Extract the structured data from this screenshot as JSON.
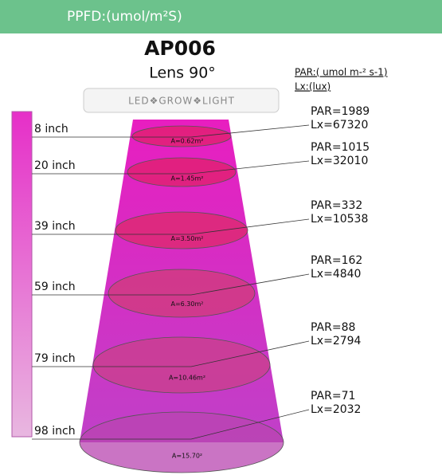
{
  "header": {
    "title": "PPFD:(umol/m²S)"
  },
  "product": {
    "model": "AP006",
    "lens": "Lens 90°"
  },
  "units": {
    "par": "PAR:( umol m-² s-1)",
    "lux": "Lx:(lux)"
  },
  "lamp": {
    "label": "LED❖GROW❖LIGHT"
  },
  "levels": [
    {
      "distance": "8 inch",
      "area": "A=0.62m²",
      "par": "PAR=1989",
      "lux": "Lx=67320"
    },
    {
      "distance": "20 inch",
      "area": "A=1.45m²",
      "par": "PAR=1015",
      "lux": "Lx=32010"
    },
    {
      "distance": "39 inch",
      "area": "A=3.50m²",
      "par": "PAR=332",
      "lux": "Lx=10538"
    },
    {
      "distance": "59 inch",
      "area": "A=6.30m²",
      "par": "PAR=162",
      "lux": "Lx=4840"
    },
    {
      "distance": "79 inch",
      "area": "A=10.46m²",
      "par": "PAR=88",
      "lux": "Lx=2794"
    },
    {
      "distance": "98 inch",
      "area": "A=15.70²",
      "par": "PAR=71",
      "lux": "Lx=2032"
    }
  ]
}
